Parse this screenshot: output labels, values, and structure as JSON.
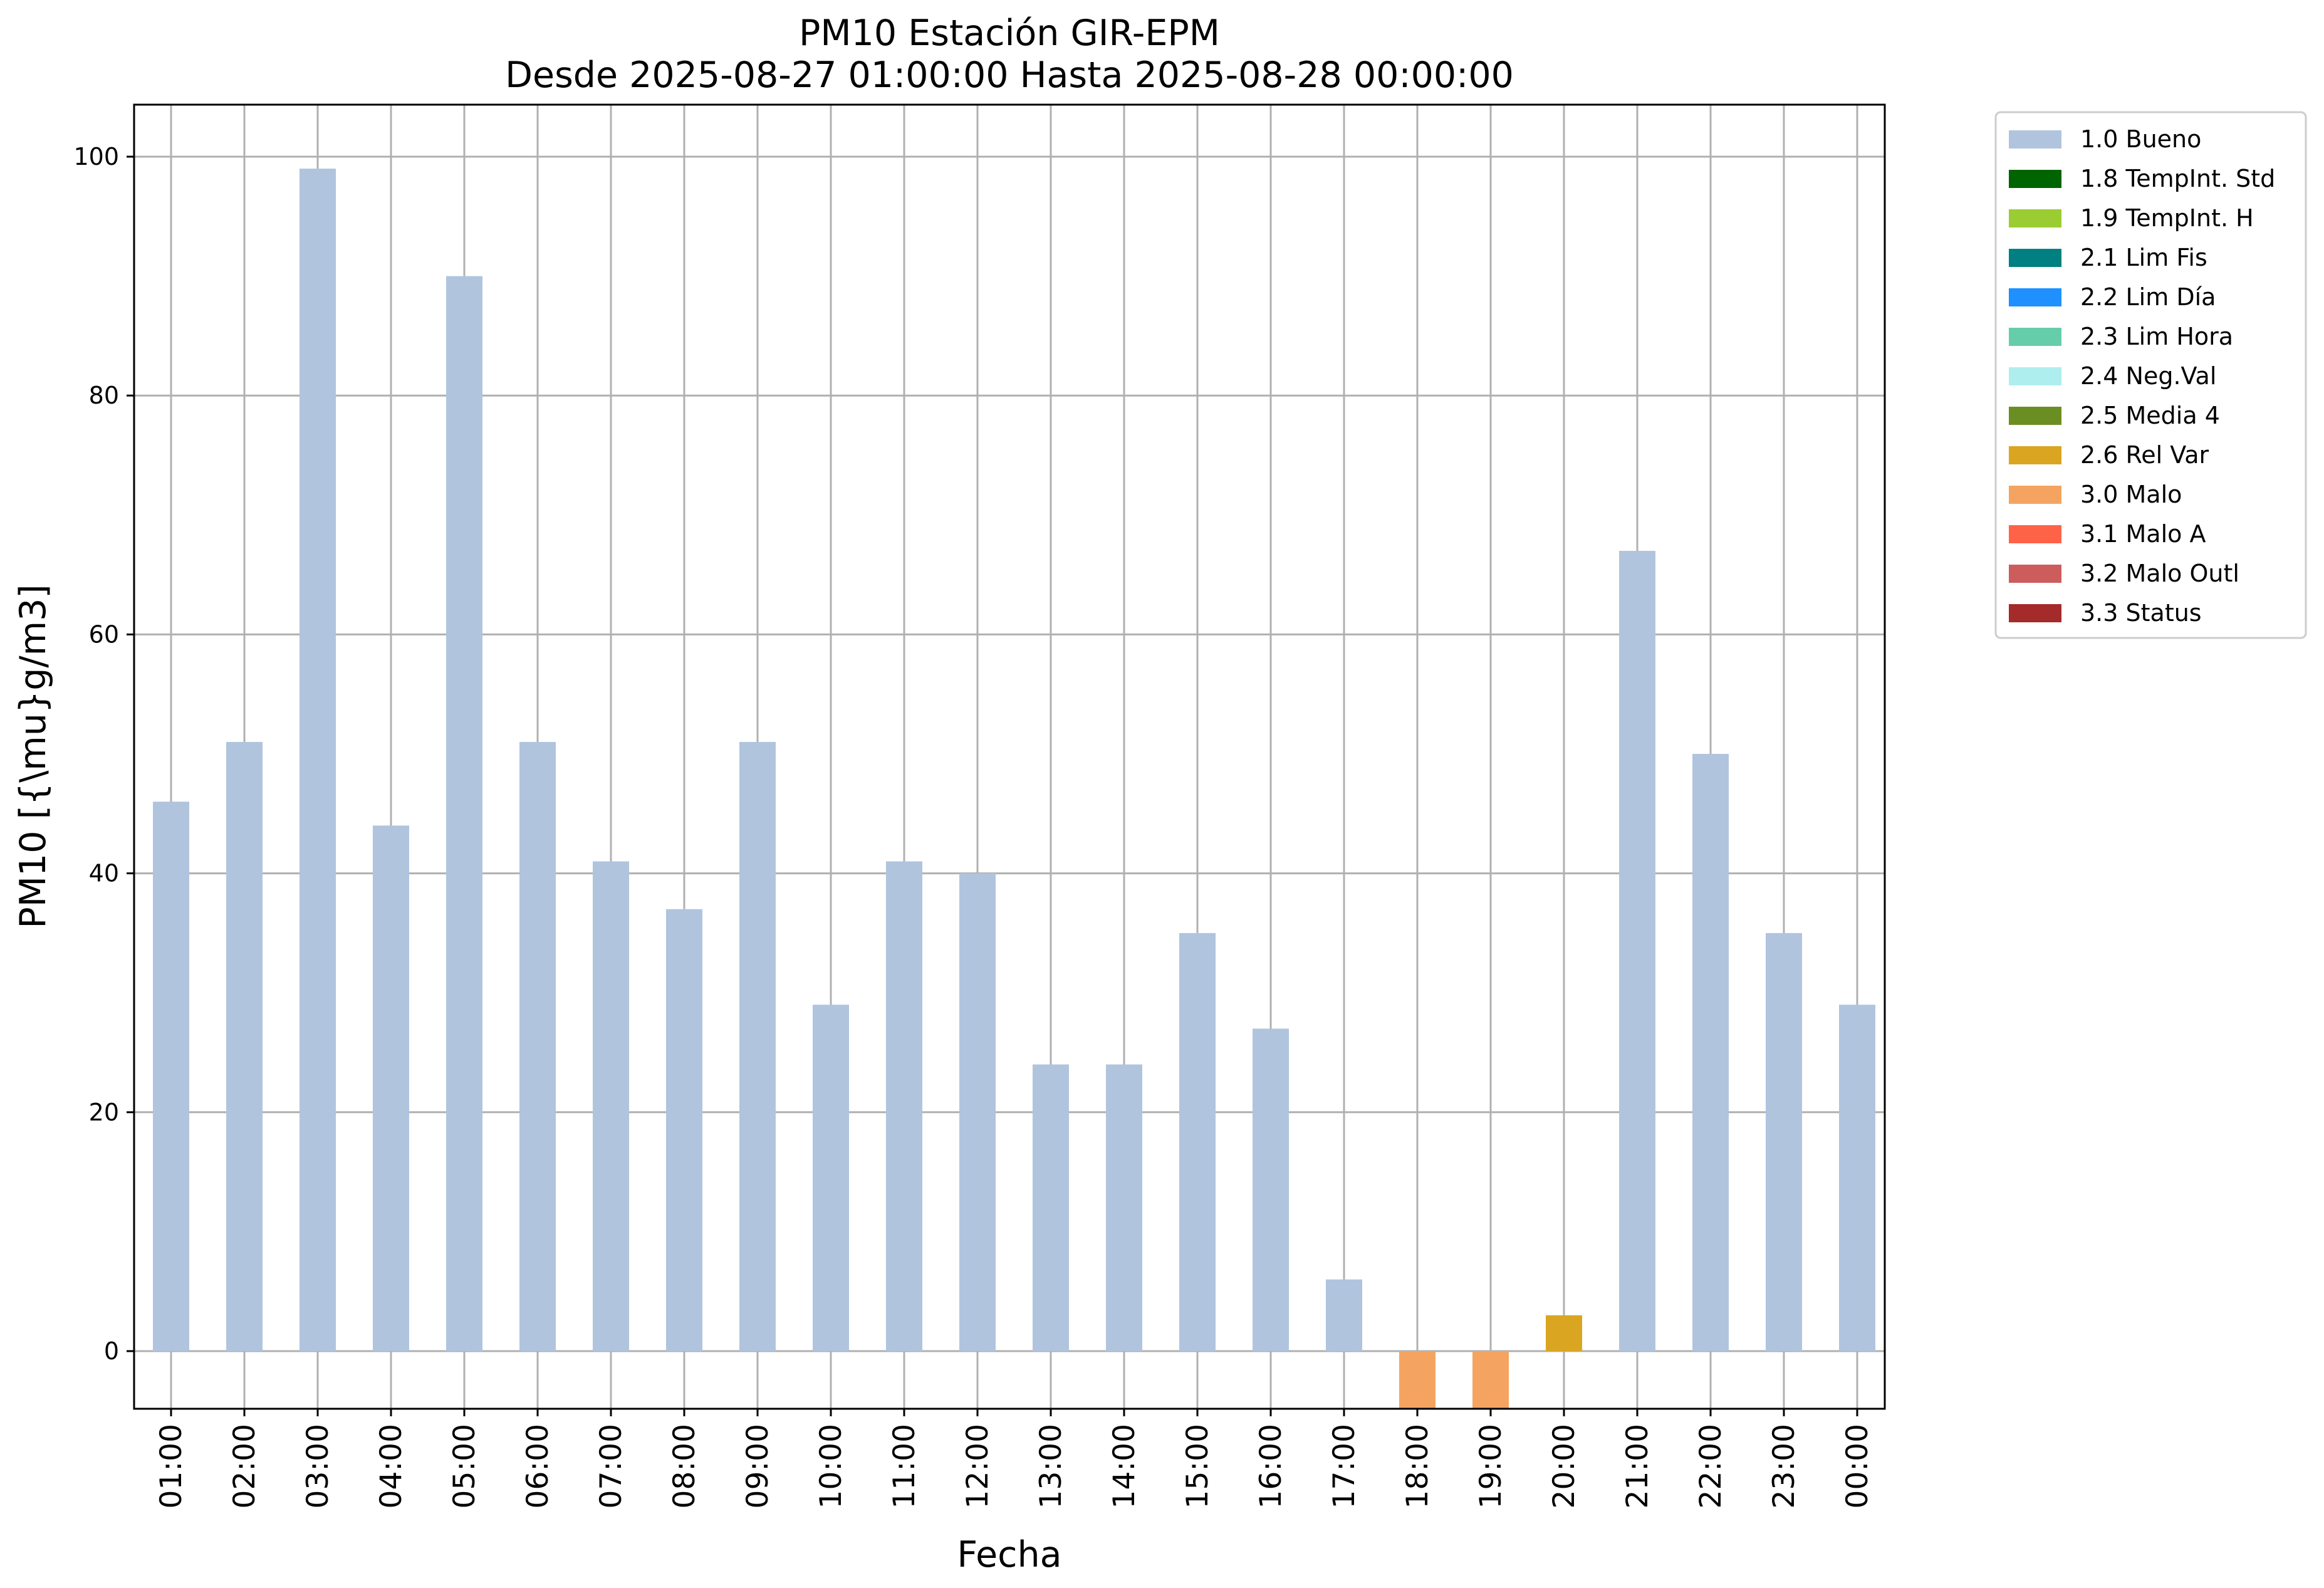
{
  "chart_data": {
    "type": "bar",
    "title_line1": "PM10 Estación GIR-EPM",
    "title_line2": "Desde 2025-08-27 01:00:00 Hasta 2025-08-28 00:00:00",
    "xlabel": "Fecha",
    "ylabel": "PM10 [{\\mu}g/m3]",
    "ylim": [
      -5,
      104
    ],
    "yticks": [
      0,
      20,
      40,
      60,
      80,
      100
    ],
    "grid": true,
    "legend_position": "outside-upper-right",
    "categories": [
      "01:00",
      "02:00",
      "03:00",
      "04:00",
      "05:00",
      "06:00",
      "07:00",
      "08:00",
      "09:00",
      "10:00",
      "11:00",
      "12:00",
      "13:00",
      "14:00",
      "15:00",
      "16:00",
      "17:00",
      "18:00",
      "19:00",
      "20:00",
      "21:00",
      "22:00",
      "23:00",
      "00:00"
    ],
    "values": [
      46,
      51,
      99,
      44,
      90,
      51,
      41,
      37,
      51,
      29,
      41,
      40,
      24,
      24,
      35,
      27,
      6,
      -6,
      -6,
      3,
      67,
      50,
      35,
      29
    ],
    "flags": [
      "1.0 Bueno",
      "1.0 Bueno",
      "1.0 Bueno",
      "1.0 Bueno",
      "1.0 Bueno",
      "1.0 Bueno",
      "1.0 Bueno",
      "1.0 Bueno",
      "1.0 Bueno",
      "1.0 Bueno",
      "1.0 Bueno",
      "1.0 Bueno",
      "1.0 Bueno",
      "1.0 Bueno",
      "1.0 Bueno",
      "1.0 Bueno",
      "1.0 Bueno",
      "3.0 Malo",
      "3.0 Malo",
      "2.6 Rel Var",
      "1.0 Bueno",
      "1.0 Bueno",
      "1.0 Bueno",
      "1.0 Bueno"
    ],
    "legend": [
      {
        "label": "1.0 Bueno",
        "color": "#B0C4DE"
      },
      {
        "label": "1.8 TempInt. Std",
        "color": "#006400"
      },
      {
        "label": "1.9 TempInt. H",
        "color": "#9ACD32"
      },
      {
        "label": "2.1 Lim Fis",
        "color": "#008080"
      },
      {
        "label": "2.2 Lim Día",
        "color": "#1E90FF"
      },
      {
        "label": "2.3 Lim Hora",
        "color": "#66CDAA"
      },
      {
        "label": "2.4 Neg.Val",
        "color": "#AFEEEE"
      },
      {
        "label": "2.5 Media 4",
        "color": "#6B8E23"
      },
      {
        "label": "2.6 Rel Var",
        "color": "#DAA520"
      },
      {
        "label": "3.0 Malo",
        "color": "#F4A460"
      },
      {
        "label": "3.1 Malo A",
        "color": "#FF6347"
      },
      {
        "label": "3.2 Malo Outl",
        "color": "#CD5C5C"
      },
      {
        "label": "3.3 Status",
        "color": "#A52A2A"
      }
    ]
  }
}
